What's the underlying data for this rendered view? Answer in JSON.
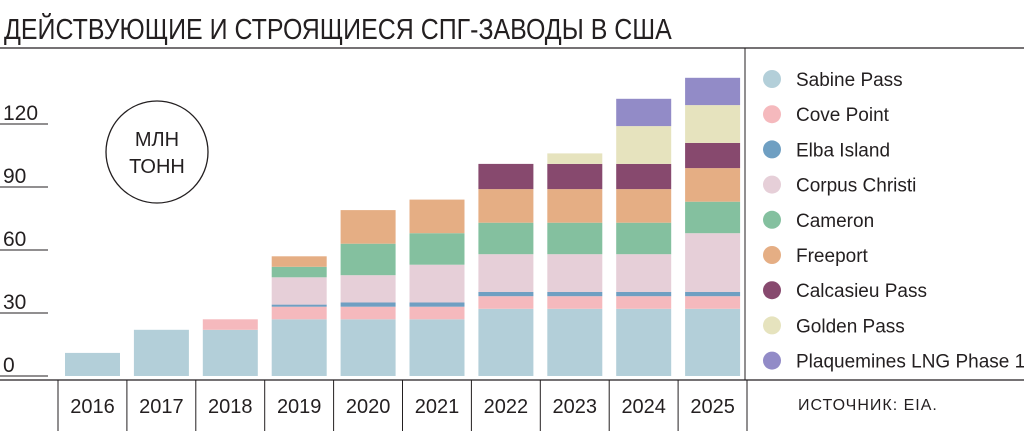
{
  "title": "ДЕЙСТВУЮЩИЕ И СТРОЯЩИЕСЯ СПГ-ЗАВОДЫ В США",
  "source": "ИСТОЧНИК: EIA.",
  "chart_data": {
    "type": "bar",
    "stacked": true,
    "title": "ДЕЙСТВУЮЩИЕ И СТРОЯЩИЕСЯ СПГ-ЗАВОДЫ В США",
    "unit_label": [
      "МЛН",
      "ТОНН"
    ],
    "categories": [
      "2016",
      "2017",
      "2018",
      "2019",
      "2020",
      "2021",
      "2022",
      "2023",
      "2024",
      "2025"
    ],
    "yticks": [
      0,
      30,
      60,
      90,
      120
    ],
    "ylim": [
      0,
      140
    ],
    "grid": false,
    "legend_position": "right",
    "series": [
      {
        "name": "Sabine Pass",
        "color": "#b3cfd9",
        "values": [
          11,
          22,
          22,
          27,
          27,
          27,
          32,
          32,
          32,
          32
        ]
      },
      {
        "name": "Cove Point",
        "color": "#f5b9bd",
        "values": [
          0,
          0,
          5,
          6,
          6,
          6,
          6,
          6,
          6,
          6
        ]
      },
      {
        "name": "Elba Island",
        "color": "#6f9fc2",
        "values": [
          0,
          0,
          0,
          1,
          2,
          2,
          2,
          2,
          2,
          2
        ]
      },
      {
        "name": "Corpus Christi",
        "color": "#e6cfd8",
        "values": [
          0,
          0,
          0,
          13,
          13,
          18,
          18,
          18,
          18,
          28
        ]
      },
      {
        "name": "Cameron",
        "color": "#84c09f",
        "values": [
          0,
          0,
          0,
          5,
          15,
          15,
          15,
          15,
          15,
          15
        ]
      },
      {
        "name": "Freeport",
        "color": "#e5ae84",
        "values": [
          0,
          0,
          0,
          5,
          16,
          16,
          16,
          16,
          16,
          16
        ]
      },
      {
        "name": "Calcasieu Pass",
        "color": "#87496e",
        "values": [
          0,
          0,
          0,
          0,
          0,
          0,
          12,
          12,
          12,
          12
        ]
      },
      {
        "name": "Golden Pass",
        "color": "#e6e3be",
        "values": [
          0,
          0,
          0,
          0,
          0,
          0,
          0,
          5,
          18,
          18
        ]
      },
      {
        "name": "Plaquemines LNG Phase 1",
        "color": "#928bc7",
        "values": [
          0,
          0,
          0,
          0,
          0,
          0,
          0,
          0,
          13,
          13
        ]
      }
    ]
  }
}
